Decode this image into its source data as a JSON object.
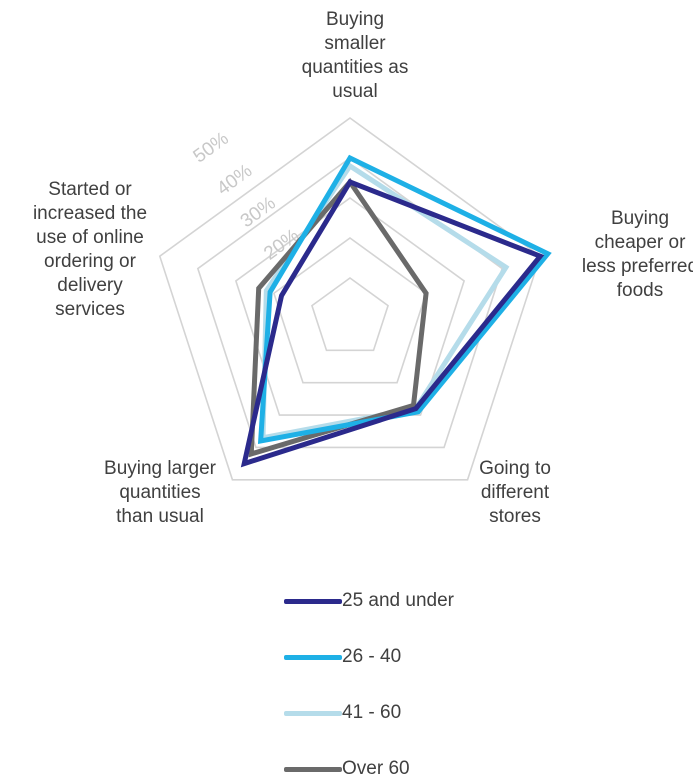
{
  "chart_data": {
    "type": "radar",
    "axes": [
      "Buying\nsmaller\nquantities as\nusual",
      "Buying\ncheaper or\nless preferred\nfoods",
      "Going to\ndifferent\nstores",
      "Buying larger\nquantities\nthan usual",
      "Started or\nincreased the\nuse of online\nordering or\ndelivery\nservices"
    ],
    "r_ticks": [
      "20%",
      "30%",
      "40%",
      "50%"
    ],
    "r_tick_values": [
      20,
      30,
      40,
      50
    ],
    "r_range": [
      0,
      50
    ],
    "ring_values": [
      10,
      20,
      30,
      40,
      50
    ],
    "grid": true,
    "legend_position": "bottom",
    "series": [
      {
        "name": "25 and under",
        "color": "#2b2a8c",
        "values": [
          34,
          50,
          28,
          45,
          18
        ]
      },
      {
        "name": "26 - 40",
        "color": "#1eb0e6",
        "values": [
          40,
          52,
          29,
          38,
          21
        ]
      },
      {
        "name": "41 - 60",
        "color": "#b5dcea",
        "values": [
          38,
          41,
          28,
          37,
          22
        ]
      },
      {
        "name": "Over 60",
        "color": "#6a6a6a",
        "values": [
          34,
          20,
          27,
          42,
          24
        ]
      }
    ]
  }
}
